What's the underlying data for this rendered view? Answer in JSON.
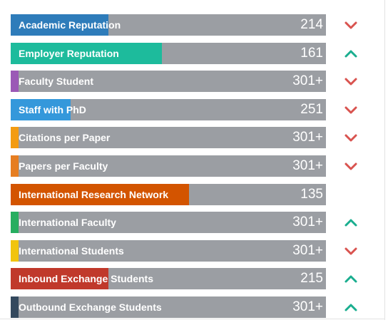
{
  "indicators": [
    {
      "label": "Academic Reputation",
      "rank": "214",
      "color": "#2e7cba",
      "fill": 0.31,
      "trend": "down",
      "trend_icon": "chevron-down-icon"
    },
    {
      "label": "Employer Reputation",
      "rank": "161",
      "color": "#1dbb9c",
      "fill": 0.48,
      "trend": "up",
      "trend_icon": "chevron-up-icon"
    },
    {
      "label": "Faculty Student",
      "rank": "301+",
      "color": "#9b59b6",
      "fill": 0.025,
      "trend": "down",
      "trend_icon": "chevron-down-icon"
    },
    {
      "label": "Staff with PhD",
      "rank": "251",
      "color": "#3498db",
      "fill": 0.19,
      "trend": "down",
      "trend_icon": "chevron-down-icon"
    },
    {
      "label": "Citations per Paper",
      "rank": "301+",
      "color": "#f39c12",
      "fill": 0.025,
      "trend": "down",
      "trend_icon": "chevron-down-icon"
    },
    {
      "label": "Papers per Faculty",
      "rank": "301+",
      "color": "#e67e22",
      "fill": 0.025,
      "trend": "down",
      "trend_icon": "chevron-down-icon"
    },
    {
      "label": "International Research Network",
      "rank": "135",
      "color": "#d35400",
      "fill": 0.565,
      "trend": "none",
      "trend_icon": ""
    },
    {
      "label": "International Faculty",
      "rank": "301+",
      "color": "#27ae60",
      "fill": 0.025,
      "trend": "up",
      "trend_icon": "chevron-up-icon"
    },
    {
      "label": "International Students",
      "rank": "301+",
      "color": "#f1c40f",
      "fill": 0.025,
      "trend": "down",
      "trend_icon": "chevron-down-icon"
    },
    {
      "label": "Inbound Exchange Students",
      "rank": "215",
      "color": "#c0392b",
      "fill": 0.31,
      "trend": "up",
      "trend_icon": "chevron-up-icon"
    },
    {
      "label": "Outbound Exchange Students",
      "rank": "301+",
      "color": "#34495e",
      "fill": 0.025,
      "trend": "up",
      "trend_icon": "chevron-up-icon"
    }
  ],
  "trend_colors": {
    "up": "#1aae8f",
    "down": "#d9534f"
  }
}
